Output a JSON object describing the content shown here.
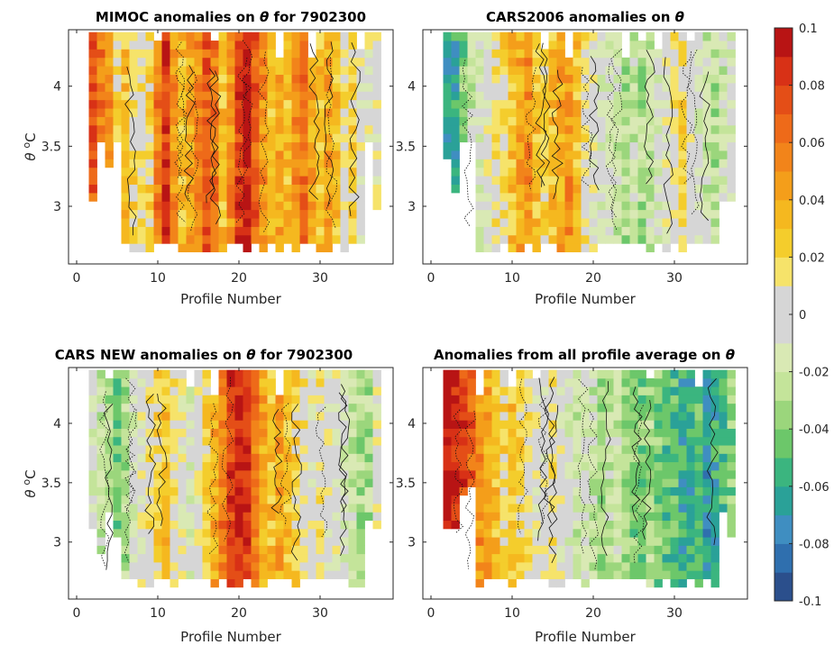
{
  "chart_data": [
    {
      "type": "heatmap",
      "panel": "top-left",
      "title_parts": [
        "MIMOC anomalies on ",
        "θ",
        "  for 7902300"
      ],
      "xlabel": "Profile Number",
      "ylabel_parts": [
        "θ",
        " ",
        "o",
        "C"
      ],
      "xlim": [
        -1,
        39
      ],
      "ylim": [
        2.52,
        4.47
      ],
      "xticks": [
        "0",
        "10",
        "20",
        "30"
      ],
      "yticks": [
        "3",
        "3.5",
        "4"
      ],
      "colorscale": [
        -0.1,
        0.1
      ],
      "pattern_profile": [
        0.06,
        0.06,
        0.07,
        0.06,
        0.05,
        0.02,
        0.03,
        0.02,
        0.01,
        0.02,
        0.06,
        0.08,
        0.05,
        0.03,
        0.04,
        0.05,
        0.07,
        0.06,
        0.03,
        0.05,
        0.08,
        0.09,
        0.07,
        0.05,
        0.03,
        0.04,
        0.03,
        0.05,
        0.06,
        0.04,
        0.03,
        0.04,
        0.03,
        0.01,
        0.02,
        0.0,
        0.0,
        0.0
      ],
      "coverage": [
        2,
        38
      ]
    },
    {
      "type": "heatmap",
      "panel": "top-right",
      "title_parts": [
        "CARS2006 anomalies on ",
        "θ",
        ""
      ],
      "xlabel": "Profile Number",
      "ylabel_parts": [],
      "xlim": [
        -1,
        39
      ],
      "ylim": [
        2.52,
        4.47
      ],
      "xticks": [
        "0",
        "10",
        "20",
        "30"
      ],
      "yticks": [
        "3",
        "3.5",
        "4"
      ],
      "colorscale": [
        -0.1,
        0.1
      ],
      "pattern_profile": [
        -0.05,
        -0.06,
        -0.07,
        -0.06,
        -0.04,
        -0.02,
        -0.01,
        0.0,
        0.01,
        0.02,
        0.03,
        0.04,
        0.05,
        0.03,
        0.02,
        0.03,
        0.04,
        0.05,
        0.03,
        0.01,
        0.0,
        -0.01,
        -0.01,
        -0.02,
        -0.03,
        -0.02,
        -0.03,
        -0.02,
        -0.01,
        0.0,
        0.01,
        0.02,
        0.0,
        -0.01,
        -0.02,
        -0.03,
        -0.02,
        -0.01
      ],
      "coverage": [
        2,
        38
      ]
    },
    {
      "type": "heatmap",
      "panel": "bottom-left",
      "title_parts": [
        "CARS NEW anomalies on ",
        "θ",
        " for 7902300"
      ],
      "xlabel": "Profile Number",
      "ylabel_parts": [
        "θ",
        " ",
        "o",
        "C"
      ],
      "xlim": [
        -1,
        39
      ],
      "ylim": [
        2.52,
        4.47
      ],
      "xticks": [
        "0",
        "10",
        "20",
        "30"
      ],
      "yticks": [
        "3",
        "3.5",
        "4"
      ],
      "colorscale": [
        -0.1,
        0.1
      ],
      "pattern_profile": [
        0.0,
        0.0,
        -0.01,
        -0.02,
        -0.03,
        -0.04,
        -0.03,
        -0.01,
        0.0,
        0.01,
        0.02,
        0.03,
        0.01,
        0.0,
        -0.01,
        0.0,
        0.02,
        0.04,
        0.06,
        0.08,
        0.09,
        0.08,
        0.06,
        0.04,
        0.03,
        0.04,
        0.03,
        0.02,
        0.01,
        0.0,
        0.01,
        0.0,
        0.0,
        -0.01,
        -0.02,
        -0.03,
        -0.03,
        0.0
      ],
      "coverage": [
        2,
        38
      ]
    },
    {
      "type": "heatmap",
      "panel": "bottom-right",
      "title_parts": [
        "Anomalies from all profile average on ",
        "θ",
        ""
      ],
      "xlabel": "Profile Number",
      "ylabel_parts": [],
      "xlim": [
        -1,
        39
      ],
      "ylim": [
        2.52,
        4.47
      ],
      "xticks": [
        "0",
        "10",
        "20",
        "30"
      ],
      "yticks": [
        "3",
        "3.5",
        "4"
      ],
      "colorscale": [
        -0.1,
        0.1
      ],
      "pattern_profile": [
        0.1,
        0.1,
        0.1,
        0.09,
        0.08,
        0.07,
        0.05,
        0.04,
        0.03,
        0.02,
        0.03,
        0.02,
        0.01,
        0.0,
        0.0,
        0.01,
        0.0,
        -0.01,
        -0.02,
        -0.01,
        -0.02,
        -0.03,
        -0.02,
        -0.02,
        -0.03,
        -0.04,
        -0.04,
        -0.03,
        -0.04,
        -0.05,
        -0.05,
        -0.06,
        -0.06,
        -0.05,
        -0.07,
        -0.06,
        -0.05,
        -0.04
      ],
      "coverage": [
        2,
        38
      ]
    }
  ],
  "colorbar": {
    "ticks": [
      "0.1",
      "0.08",
      "0.06",
      "0.04",
      "0.02",
      "0",
      "-0.02",
      "-0.04",
      "-0.06",
      "-0.08",
      "-0.1"
    ],
    "range": [
      -0.1,
      0.1
    ],
    "colors": [
      "#2b4f8c",
      "#2f6fae",
      "#3f8ec1",
      "#2aa198",
      "#3bb57f",
      "#6cc76a",
      "#9bd67c",
      "#c4e49a",
      "#d9e9b4",
      "#d6d6d6",
      "#d6d6d6",
      "#f6e36a",
      "#f4cd2c",
      "#f5b81f",
      "#f49e1a",
      "#f2841a",
      "#ee6a19",
      "#e44e17",
      "#d83116",
      "#b81414"
    ]
  }
}
